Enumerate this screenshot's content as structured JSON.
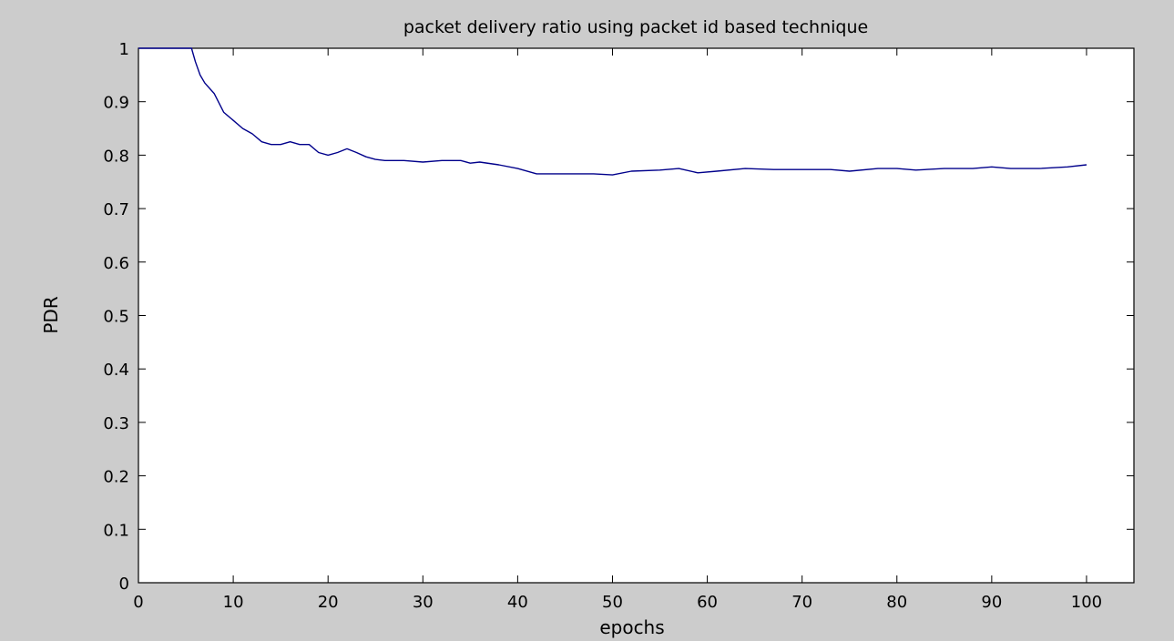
{
  "chart_data": {
    "type": "line",
    "title": "packet delivery ratio using packet id based technique",
    "xlabel": "epochs",
    "ylabel": "PDR",
    "xlim": [
      0,
      105
    ],
    "ylim": [
      0,
      1
    ],
    "xticks": [
      0,
      10,
      20,
      30,
      40,
      50,
      60,
      70,
      80,
      90,
      100
    ],
    "yticks": [
      0,
      0.1,
      0.2,
      0.3,
      0.4,
      0.5,
      0.6,
      0.7,
      0.8,
      0.9,
      1
    ],
    "xtick_labels": [
      "0",
      "10",
      "20",
      "30",
      "40",
      "50",
      "60",
      "70",
      "80",
      "90",
      "100"
    ],
    "ytick_labels": [
      "0",
      "0.1",
      "0.2",
      "0.3",
      "0.4",
      "0.5",
      "0.6",
      "0.7",
      "0.8",
      "0.9",
      "1"
    ],
    "grid": false,
    "legend": null,
    "series": [
      {
        "color": "#00008b",
        "x": [
          0,
          1,
          2,
          3,
          4,
          5,
          5.6,
          6,
          6.5,
          7,
          8,
          9,
          10,
          11,
          12,
          13,
          14,
          15,
          16,
          17,
          18,
          19,
          20,
          21,
          22,
          23,
          24,
          25,
          26,
          28,
          30,
          32,
          34,
          35,
          36,
          38,
          40,
          42,
          45,
          48,
          50,
          52,
          55,
          57,
          59,
          61,
          64,
          67,
          70,
          73,
          75,
          78,
          80,
          82,
          85,
          88,
          90,
          92,
          95,
          98,
          100
        ],
        "y": [
          1,
          1,
          1,
          1,
          1,
          1,
          1,
          0.975,
          0.95,
          0.935,
          0.915,
          0.88,
          0.865,
          0.85,
          0.84,
          0.825,
          0.82,
          0.82,
          0.825,
          0.82,
          0.82,
          0.805,
          0.8,
          0.805,
          0.812,
          0.805,
          0.797,
          0.792,
          0.79,
          0.79,
          0.787,
          0.79,
          0.79,
          0.785,
          0.787,
          0.782,
          0.775,
          0.765,
          0.765,
          0.765,
          0.763,
          0.77,
          0.772,
          0.775,
          0.767,
          0.77,
          0.775,
          0.773,
          0.773,
          0.773,
          0.77,
          0.775,
          0.775,
          0.772,
          0.775,
          0.775,
          0.778,
          0.775,
          0.775,
          0.778,
          0.782
        ]
      }
    ]
  }
}
